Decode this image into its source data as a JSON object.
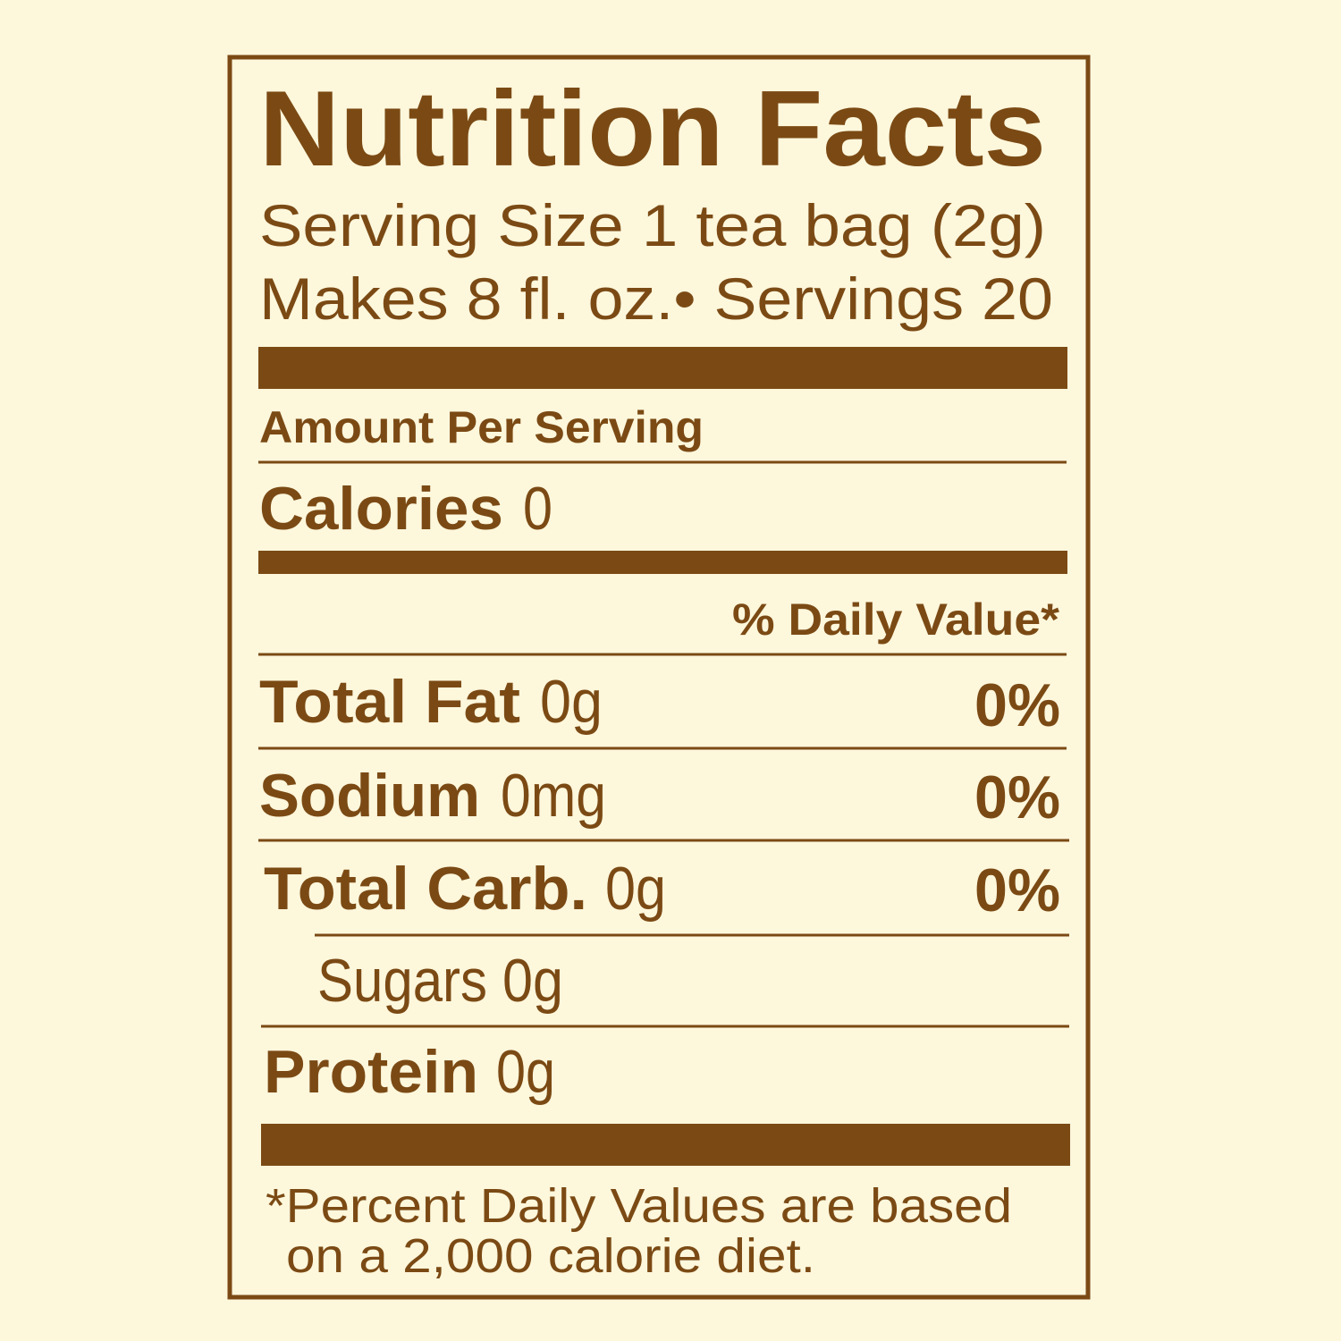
{
  "header": {
    "title": "Nutrition Facts",
    "serving_size": "Serving Size 1 tea bag (2g)",
    "servings": "Makes 8 fl. oz.• Servings 20"
  },
  "amount_per_serving": "Amount Per Serving",
  "calories": {
    "label": "Calories",
    "value": "0"
  },
  "daily_value_header": "% Daily Value*",
  "nutrients": [
    {
      "label": "Total Fat",
      "amount": "0g",
      "daily_value": "0%"
    },
    {
      "label": "Sodium",
      "amount": "0mg",
      "daily_value": "0%"
    },
    {
      "label": "Total Carb.",
      "amount": "0g",
      "daily_value": "0%"
    },
    {
      "label": "Sugars",
      "amount": "0g"
    },
    {
      "label": "Protein",
      "amount": "0g"
    }
  ],
  "footnote": [
    "*Percent Daily Values are based",
    "on a 2,000 calorie diet."
  ]
}
